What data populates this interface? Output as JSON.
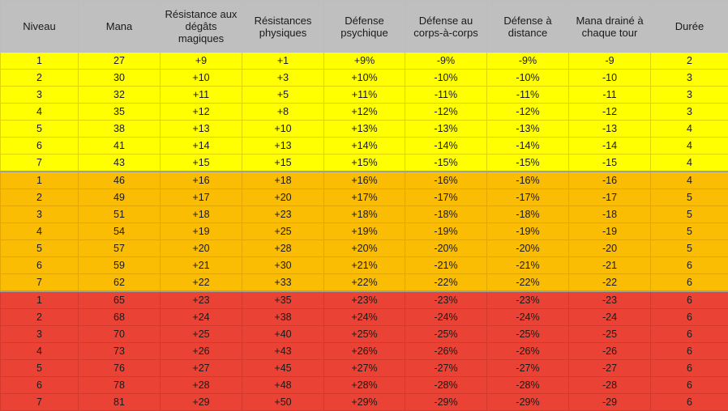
{
  "table": {
    "headers": [
      "Niveau",
      "Mana",
      "Résistance aux dégâts magiques",
      "Résistances physiques",
      "Défense psychique",
      "Défense au corps-à-corps",
      "Défense à distance",
      "Mana drainé à chaque tour",
      "Durée"
    ],
    "tier_colors": [
      "#ffff00",
      "#fbbc04",
      "#ea4335"
    ],
    "rows": [
      {
        "tier": 0,
        "cells": [
          "1",
          "27",
          "+9",
          "+1",
          "+9%",
          "-9%",
          "-9%",
          "-9",
          "2"
        ]
      },
      {
        "tier": 0,
        "cells": [
          "2",
          "30",
          "+10",
          "+3",
          "+10%",
          "-10%",
          "-10%",
          "-10",
          "3"
        ]
      },
      {
        "tier": 0,
        "cells": [
          "3",
          "32",
          "+11",
          "+5",
          "+11%",
          "-11%",
          "-11%",
          "-11",
          "3"
        ]
      },
      {
        "tier": 0,
        "cells": [
          "4",
          "35",
          "+12",
          "+8",
          "+12%",
          "-12%",
          "-12%",
          "-12",
          "3"
        ]
      },
      {
        "tier": 0,
        "cells": [
          "5",
          "38",
          "+13",
          "+10",
          "+13%",
          "-13%",
          "-13%",
          "-13",
          "4"
        ]
      },
      {
        "tier": 0,
        "cells": [
          "6",
          "41",
          "+14",
          "+13",
          "+14%",
          "-14%",
          "-14%",
          "-14",
          "4"
        ]
      },
      {
        "tier": 0,
        "cells": [
          "7",
          "43",
          "+15",
          "+15",
          "+15%",
          "-15%",
          "-15%",
          "-15",
          "4"
        ]
      },
      {
        "tier": 1,
        "cells": [
          "1",
          "46",
          "+16",
          "+18",
          "+16%",
          "-16%",
          "-16%",
          "-16",
          "4"
        ]
      },
      {
        "tier": 1,
        "cells": [
          "2",
          "49",
          "+17",
          "+20",
          "+17%",
          "-17%",
          "-17%",
          "-17",
          "5"
        ]
      },
      {
        "tier": 1,
        "cells": [
          "3",
          "51",
          "+18",
          "+23",
          "+18%",
          "-18%",
          "-18%",
          "-18",
          "5"
        ]
      },
      {
        "tier": 1,
        "cells": [
          "4",
          "54",
          "+19",
          "+25",
          "+19%",
          "-19%",
          "-19%",
          "-19",
          "5"
        ]
      },
      {
        "tier": 1,
        "cells": [
          "5",
          "57",
          "+20",
          "+28",
          "+20%",
          "-20%",
          "-20%",
          "-20",
          "5"
        ]
      },
      {
        "tier": 1,
        "cells": [
          "6",
          "59",
          "+21",
          "+30",
          "+21%",
          "-21%",
          "-21%",
          "-21",
          "6"
        ]
      },
      {
        "tier": 1,
        "cells": [
          "7",
          "62",
          "+22",
          "+33",
          "+22%",
          "-22%",
          "-22%",
          "-22",
          "6"
        ]
      },
      {
        "tier": 2,
        "cells": [
          "1",
          "65",
          "+23",
          "+35",
          "+23%",
          "-23%",
          "-23%",
          "-23",
          "6"
        ]
      },
      {
        "tier": 2,
        "cells": [
          "2",
          "68",
          "+24",
          "+38",
          "+24%",
          "-24%",
          "-24%",
          "-24",
          "6"
        ]
      },
      {
        "tier": 2,
        "cells": [
          "3",
          "70",
          "+25",
          "+40",
          "+25%",
          "-25%",
          "-25%",
          "-25",
          "6"
        ]
      },
      {
        "tier": 2,
        "cells": [
          "4",
          "73",
          "+26",
          "+43",
          "+26%",
          "-26%",
          "-26%",
          "-26",
          "6"
        ]
      },
      {
        "tier": 2,
        "cells": [
          "5",
          "76",
          "+27",
          "+45",
          "+27%",
          "-27%",
          "-27%",
          "-27",
          "6"
        ]
      },
      {
        "tier": 2,
        "cells": [
          "6",
          "78",
          "+28",
          "+48",
          "+28%",
          "-28%",
          "-28%",
          "-28",
          "6"
        ]
      },
      {
        "tier": 2,
        "cells": [
          "7",
          "81",
          "+29",
          "+50",
          "+29%",
          "-29%",
          "-29%",
          "-29",
          "6"
        ]
      }
    ]
  }
}
